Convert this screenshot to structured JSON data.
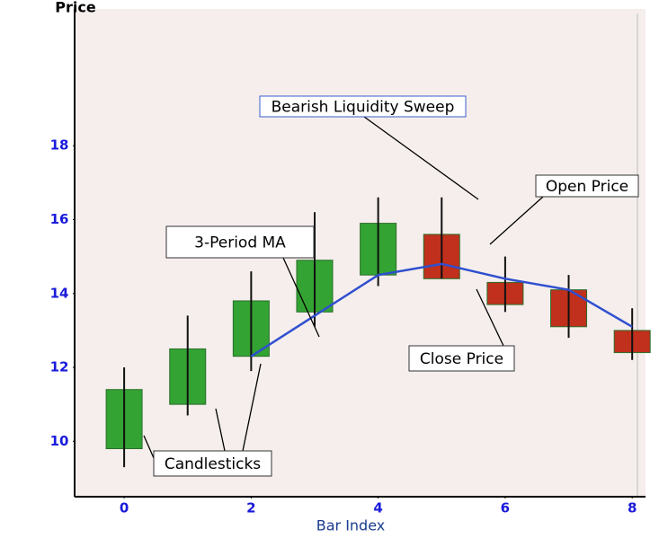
{
  "chart_data": {
    "type": "candlestick",
    "title": "Price",
    "x_label": "Bar Index",
    "x": [
      0,
      1,
      2,
      3,
      4,
      5,
      6,
      7,
      8
    ],
    "open": [
      9.8,
      11.0,
      12.3,
      13.5,
      14.5,
      15.6,
      14.3,
      14.1,
      13.0
    ],
    "high": [
      12.0,
      13.4,
      14.6,
      16.2,
      16.6,
      16.6,
      15.0,
      14.5,
      13.6
    ],
    "low": [
      9.3,
      10.7,
      11.9,
      13.1,
      14.2,
      14.4,
      13.5,
      12.8,
      12.2
    ],
    "close": [
      11.4,
      12.5,
      13.8,
      14.9,
      15.9,
      14.4,
      13.7,
      13.1,
      12.4
    ],
    "up_color": "#33a333",
    "down_color": "#c0301c",
    "series": [
      {
        "name": "3-Period MA",
        "color": "#2f4fcf",
        "values": [
          null,
          null,
          12.3,
          13.4,
          14.5,
          14.8,
          14.4,
          14.1,
          13.1
        ]
      }
    ],
    "annotations": [
      {
        "text": "Bearish Liquidity Sweep"
      },
      {
        "text": "Open Price"
      },
      {
        "text": "3-Period MA"
      },
      {
        "text": "Close Price"
      },
      {
        "text": "Candlesticks"
      }
    ],
    "xlim": [
      -0.78,
      8.21
    ],
    "ylim": [
      8.5,
      21.7
    ],
    "xticks": [
      0,
      2,
      4,
      6,
      8
    ],
    "yticks": [
      10,
      12,
      14,
      16,
      18
    ]
  }
}
